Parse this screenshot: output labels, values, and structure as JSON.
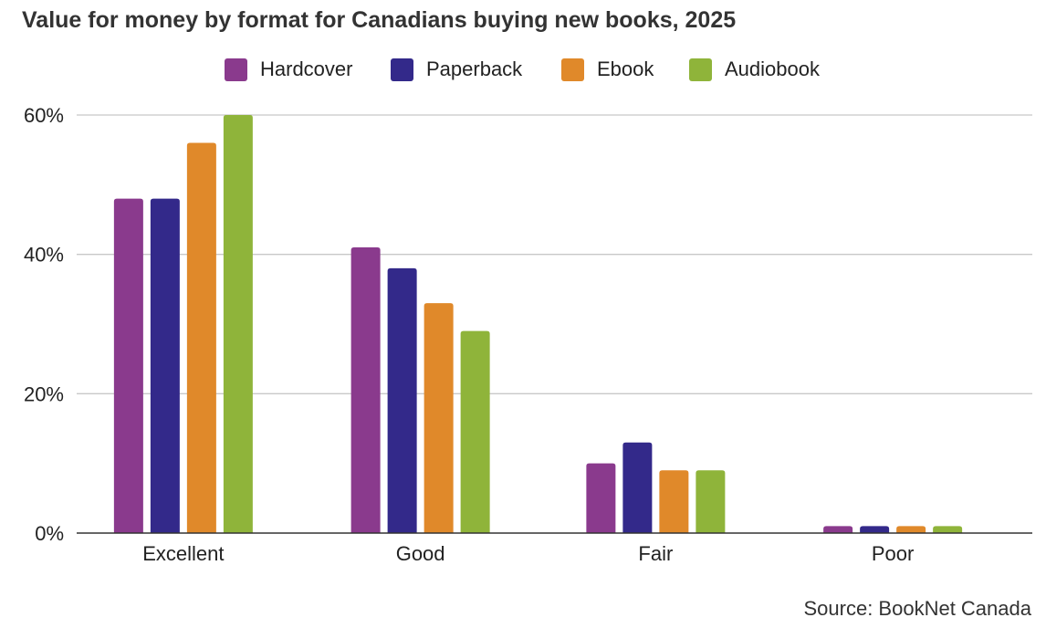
{
  "chart_data": {
    "type": "bar",
    "title": "Value for money by format for Canadians buying new books, 2025",
    "categories": [
      "Excellent",
      "Good",
      "Fair",
      "Poor"
    ],
    "series": [
      {
        "name": "Hardcover",
        "values": [
          48,
          41,
          10,
          1
        ],
        "color": "#8a3a8d"
      },
      {
        "name": "Paperback",
        "values": [
          48,
          38,
          13,
          1
        ],
        "color": "#33298a"
      },
      {
        "name": "Ebook",
        "values": [
          56,
          33,
          9,
          1
        ],
        "color": "#e0892a"
      },
      {
        "name": "Audiobook",
        "values": [
          60,
          29,
          9,
          1
        ],
        "color": "#8fb43a"
      }
    ],
    "yticks": [
      "0%",
      "20%",
      "40%",
      "60%"
    ],
    "ylim": [
      0,
      60
    ],
    "grid": true,
    "legend_position": "top-center",
    "source": "Source: BookNet Canada"
  }
}
